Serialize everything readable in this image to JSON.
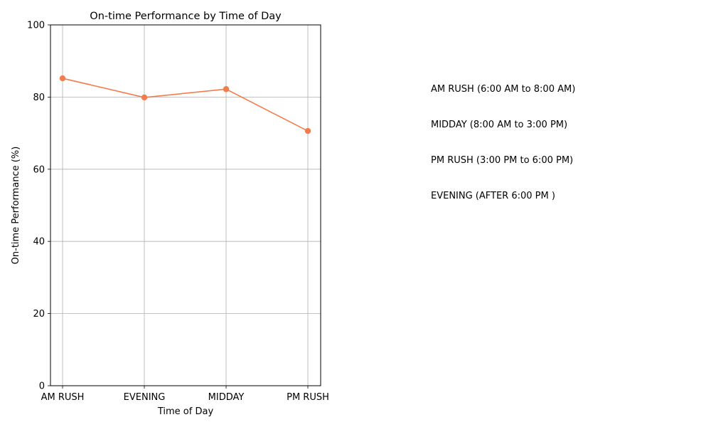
{
  "chart_data": {
    "type": "line",
    "title": "On-time Performance by Time of Day",
    "xlabel": "Time of Day",
    "ylabel": "On-time Performance (%)",
    "categories": [
      "AM RUSH",
      "EVENING",
      "MIDDAY",
      "PM RUSH"
    ],
    "series": [
      {
        "values": [
          85.2,
          79.9,
          82.2,
          70.6
        ]
      }
    ],
    "ylim": [
      0,
      100
    ],
    "yticks": [
      0,
      20,
      40,
      60,
      80,
      100
    ],
    "grid": true,
    "marker": "circle",
    "colors": {
      "line": "#f47c4c",
      "grid": "#b0b0b0",
      "axis": "#000000"
    }
  },
  "annotations": [
    "AM RUSH (6:00 AM to 8:00 AM)",
    "MIDDAY (8:00 AM to 3:00 PM)",
    "PM RUSH (3:00 PM to 6:00 PM)",
    "EVENING (AFTER 6:00 PM )"
  ]
}
